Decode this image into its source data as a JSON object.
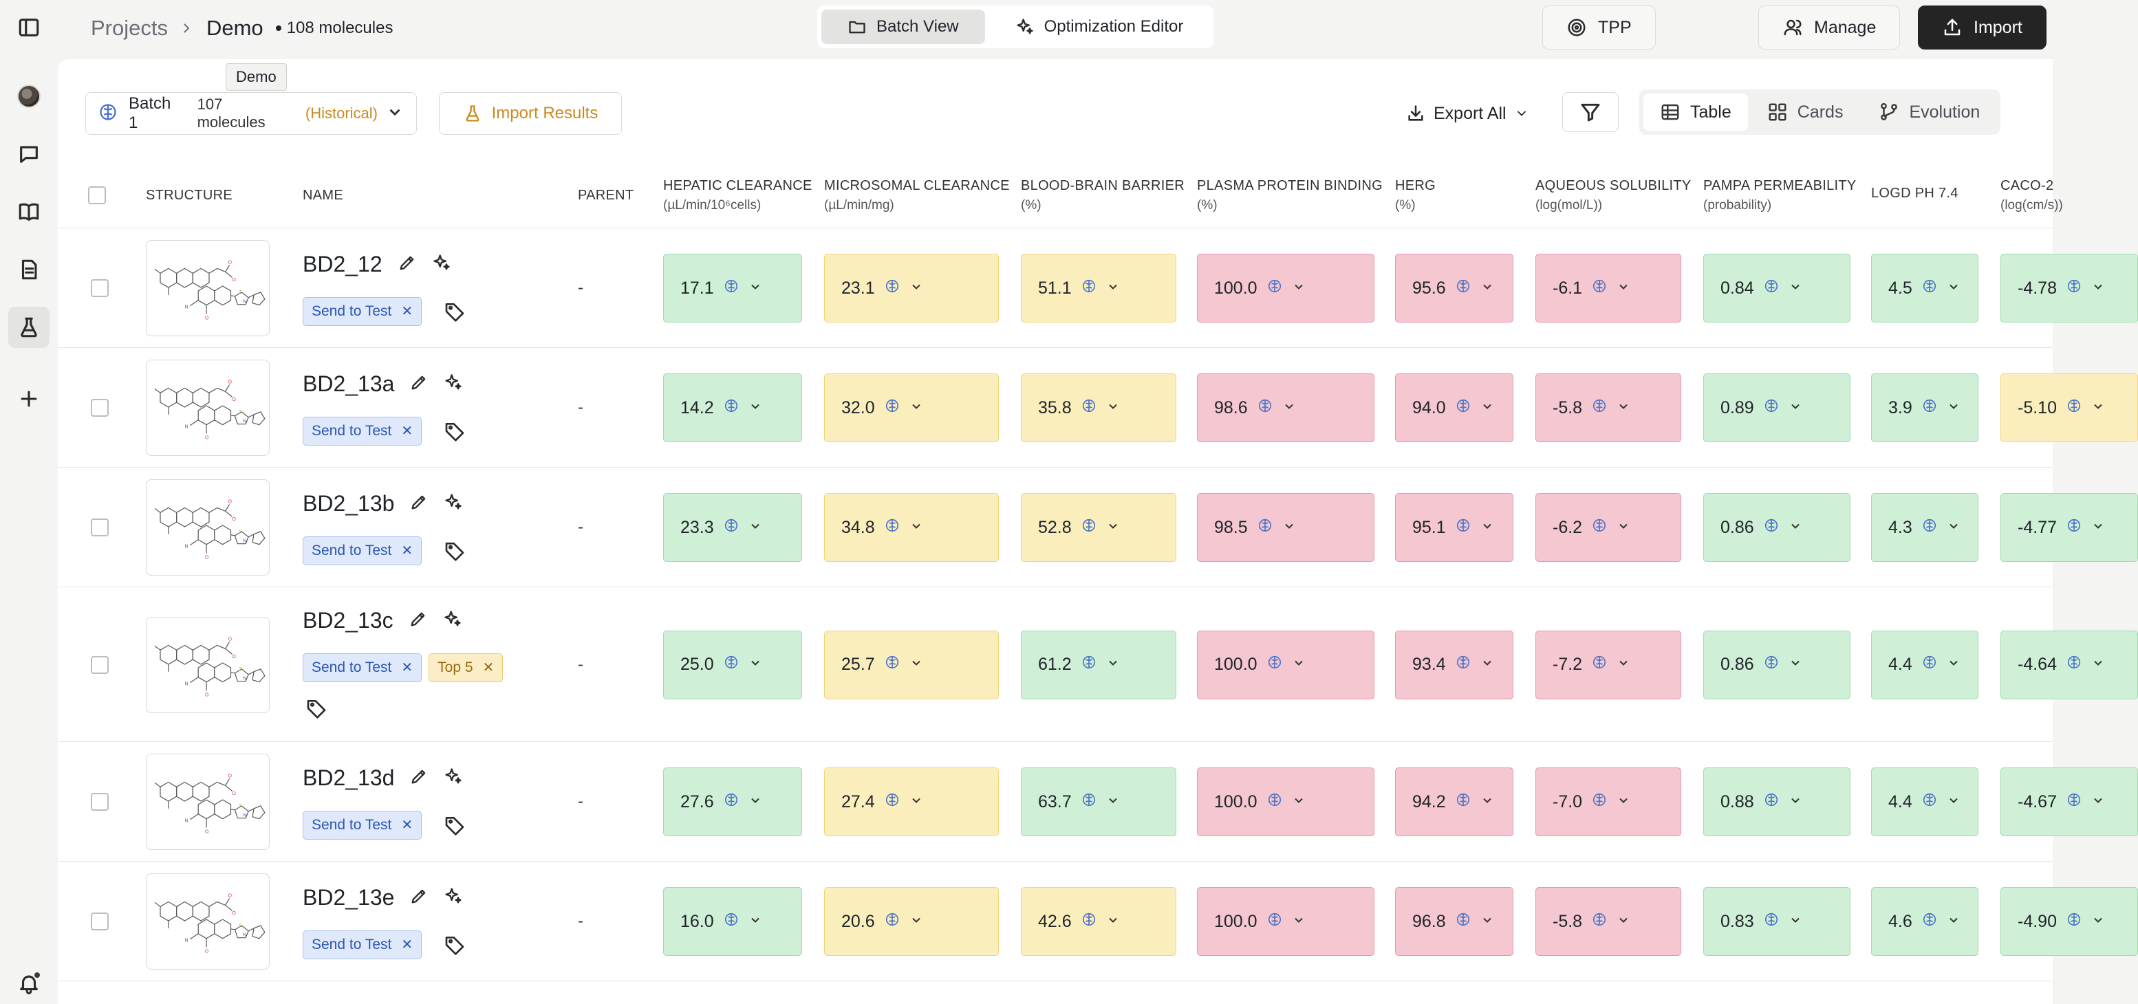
{
  "header": {
    "breadcrumb_projects": "Projects",
    "breadcrumb_current": "Demo",
    "molecule_count": "108 molecules",
    "tabs": [
      {
        "label": "Batch View",
        "icon": "folder-icon",
        "active": true
      },
      {
        "label": "Optimization Editor",
        "icon": "sparkle-icon",
        "active": false
      }
    ],
    "buttons": {
      "tpp": "TPP",
      "manage": "Manage",
      "import": "Import"
    }
  },
  "tooltip": "Demo",
  "toolbar": {
    "batch_name": "Batch 1",
    "batch_count": "107 molecules",
    "batch_status": "(Historical)",
    "import_results": "Import Results",
    "export_all": "Export All",
    "views": [
      {
        "label": "Table",
        "active": true
      },
      {
        "label": "Cards",
        "active": false
      },
      {
        "label": "Evolution",
        "active": false
      }
    ]
  },
  "table": {
    "columns": {
      "structure": "STRUCTURE",
      "name": "NAME",
      "parent": "PARENT",
      "props": [
        {
          "label": "HEPATIC CLEARANCE",
          "unit": "(µL/min/10⁶cells)"
        },
        {
          "label": "MICROSOMAL CLEARANCE",
          "unit": "(µL/min/mg)"
        },
        {
          "label": "BLOOD-BRAIN BARRIER",
          "unit": "(%)"
        },
        {
          "label": "PLASMA PROTEIN BINDING",
          "unit": "(%)"
        },
        {
          "label": "HERG",
          "unit": "(%)"
        },
        {
          "label": "AQUEOUS SOLUBILITY",
          "unit": "(log(mol/L))"
        },
        {
          "label": "PAMPA PERMEABILITY",
          "unit": "(probability)"
        },
        {
          "label": "LOGD PH 7.4",
          "unit": ""
        },
        {
          "label": "CACO-2",
          "unit": "(log(cm/s))"
        }
      ]
    },
    "rows": [
      {
        "name": "BD2_12",
        "parent": "-",
        "tags": [
          {
            "label": "Send to Test",
            "color": "blue"
          }
        ],
        "values": [
          "17.1",
          "23.1",
          "51.1",
          "100.0",
          "95.6",
          "-6.1",
          "0.84",
          "4.5",
          "-4.78"
        ],
        "colors": [
          "g",
          "y",
          "y",
          "r",
          "r",
          "r",
          "g",
          "g",
          "g"
        ]
      },
      {
        "name": "BD2_13a",
        "parent": "-",
        "tags": [
          {
            "label": "Send to Test",
            "color": "blue"
          }
        ],
        "values": [
          "14.2",
          "32.0",
          "35.8",
          "98.6",
          "94.0",
          "-5.8",
          "0.89",
          "3.9",
          "-5.10"
        ],
        "colors": [
          "g",
          "y",
          "y",
          "r",
          "r",
          "r",
          "g",
          "g",
          "y"
        ]
      },
      {
        "name": "BD2_13b",
        "parent": "-",
        "tags": [
          {
            "label": "Send to Test",
            "color": "blue"
          }
        ],
        "values": [
          "23.3",
          "34.8",
          "52.8",
          "98.5",
          "95.1",
          "-6.2",
          "0.86",
          "4.3",
          "-4.77"
        ],
        "colors": [
          "g",
          "y",
          "y",
          "r",
          "r",
          "r",
          "g",
          "g",
          "g"
        ]
      },
      {
        "name": "BD2_13c",
        "parent": "-",
        "tags": [
          {
            "label": "Send to Test",
            "color": "blue"
          },
          {
            "label": "Top 5",
            "color": "amber"
          }
        ],
        "values": [
          "25.0",
          "25.7",
          "61.2",
          "100.0",
          "93.4",
          "-7.2",
          "0.86",
          "4.4",
          "-4.64"
        ],
        "colors": [
          "g",
          "y",
          "g",
          "r",
          "r",
          "r",
          "g",
          "g",
          "g"
        ]
      },
      {
        "name": "BD2_13d",
        "parent": "-",
        "tags": [
          {
            "label": "Send to Test",
            "color": "blue"
          }
        ],
        "values": [
          "27.6",
          "27.4",
          "63.7",
          "100.0",
          "94.2",
          "-7.0",
          "0.88",
          "4.4",
          "-4.67"
        ],
        "colors": [
          "g",
          "y",
          "g",
          "r",
          "r",
          "r",
          "g",
          "g",
          "g"
        ]
      },
      {
        "name": "BD2_13e",
        "parent": "-",
        "tags": [
          {
            "label": "Send to Test",
            "color": "blue"
          }
        ],
        "values": [
          "16.0",
          "20.6",
          "42.6",
          "100.0",
          "96.8",
          "-5.8",
          "0.83",
          "4.6",
          "-4.90"
        ],
        "colors": [
          "g",
          "y",
          "y",
          "r",
          "r",
          "r",
          "g",
          "g",
          "g"
        ]
      }
    ]
  }
}
